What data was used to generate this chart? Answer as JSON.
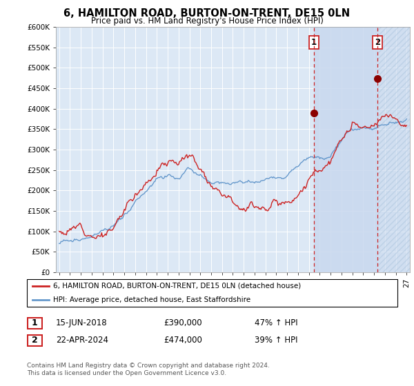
{
  "title": "6, HAMILTON ROAD, BURTON-ON-TRENT, DE15 0LN",
  "subtitle": "Price paid vs. HM Land Registry's House Price Index (HPI)",
  "legend_line1": "6, HAMILTON ROAD, BURTON-ON-TRENT, DE15 0LN (detached house)",
  "legend_line2": "HPI: Average price, detached house, East Staffordshire",
  "annotation1_date": "15-JUN-2018",
  "annotation1_price": "£390,000",
  "annotation1_hpi": "47% ↑ HPI",
  "annotation2_date": "22-APR-2024",
  "annotation2_price": "£474,000",
  "annotation2_hpi": "39% ↑ HPI",
  "footer": "Contains HM Land Registry data © Crown copyright and database right 2024.\nThis data is licensed under the Open Government Licence v3.0.",
  "red_color": "#cc2222",
  "blue_color": "#6699cc",
  "background_color": "#ffffff",
  "plot_bg_color": "#dce8f5",
  "highlight_color": "#c8d8ee",
  "ylim": [
    0,
    600000
  ],
  "yticks": [
    0,
    50000,
    100000,
    150000,
    200000,
    250000,
    300000,
    350000,
    400000,
    450000,
    500000,
    550000,
    600000
  ],
  "marker1_x": 2018.46,
  "marker1_y": 390000,
  "marker2_x": 2024.31,
  "marker2_y": 474000,
  "vline1_x": 2018.46,
  "vline2_x": 2024.31,
  "xmin": 1994.7,
  "xmax": 2027.3
}
